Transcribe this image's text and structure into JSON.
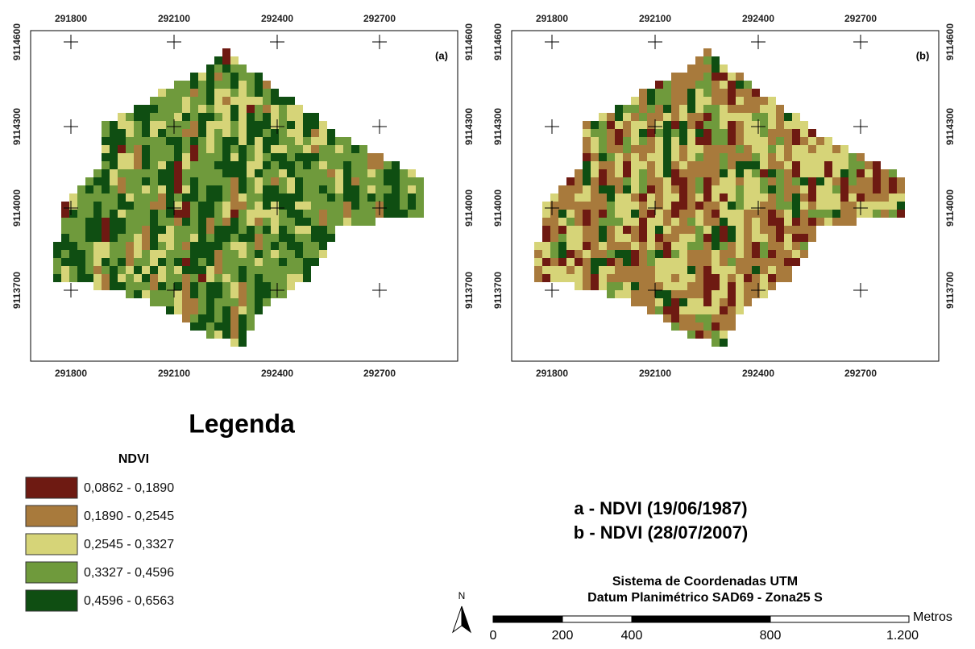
{
  "maps": [
    {
      "label": "(a)"
    },
    {
      "label": "(b)"
    }
  ],
  "grid": {
    "x_labels": [
      "291800",
      "292100",
      "292400",
      "292700"
    ],
    "y_labels": [
      "9114600",
      "9114300",
      "9114000",
      "9113700"
    ]
  },
  "legend": {
    "title": "Legenda",
    "subtitle": "NDVI",
    "classes": [
      {
        "label": "0,0862 - 0,1890",
        "color": "#6e1a12"
      },
      {
        "label": "0,1890 - 0,2545",
        "color": "#a87a3c"
      },
      {
        "label": "0,2545 - 0,3327",
        "color": "#d6d478"
      },
      {
        "label": "0,3327 - 0,4596",
        "color": "#6f9a3c"
      },
      {
        "label": "0,4596 - 0,6563",
        "color": "#0f4e12"
      }
    ]
  },
  "captions": [
    "a - NDVI (19/06/1987)",
    "b - NDVI (28/07/2007)"
  ],
  "coordinate_system": [
    "Sistema de Coordenadas UTM",
    "Datum Planimétrico SAD69 - Zona25 S"
  ],
  "north": "N",
  "scale_bar": {
    "labels": [
      "0",
      "200",
      "400",
      "800",
      "1.200"
    ],
    "unit": "Metros"
  }
}
